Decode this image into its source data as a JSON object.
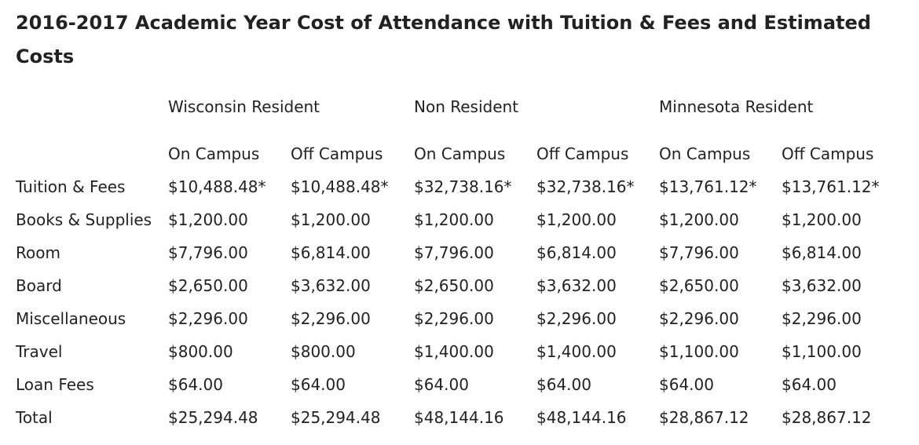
{
  "title": "2016-2017 Academic Year Cost of Attendance with Tuition & Fees and Estimated Costs",
  "groups": [
    "Wisconsin Resident",
    "Non Resident",
    "Minnesota Resident"
  ],
  "subheaders": [
    "On Campus",
    "Off Campus",
    "On Campus",
    "Off Campus",
    "On Campus",
    "Off Campus"
  ],
  "rows": [
    {
      "label": "Tuition & Fees",
      "values": [
        "$10,488.48*",
        "$10,488.48*",
        "$32,738.16*",
        "$32,738.16*",
        "$13,761.12*",
        "$13,761.12*"
      ]
    },
    {
      "label": "Books & Supplies",
      "values": [
        "$1,200.00",
        "$1,200.00",
        "$1,200.00",
        "$1,200.00",
        "$1,200.00",
        "$1,200.00"
      ]
    },
    {
      "label": "Room",
      "values": [
        "$7,796.00",
        "$6,814.00",
        "$7,796.00",
        "$6,814.00",
        "$7,796.00",
        "$6,814.00"
      ]
    },
    {
      "label": "Board",
      "values": [
        "$2,650.00",
        "$3,632.00",
        "$2,650.00",
        "$3,632.00",
        "$2,650.00",
        "$3,632.00"
      ]
    },
    {
      "label": "Miscellaneous",
      "values": [
        "$2,296.00",
        "$2,296.00",
        "$2,296.00",
        "$2,296.00",
        "$2,296.00",
        "$2,296.00"
      ]
    },
    {
      "label": "Travel",
      "values": [
        "$800.00",
        "$800.00",
        "$1,400.00",
        "$1,400.00",
        "$1,100.00",
        "$1,100.00"
      ]
    },
    {
      "label": "Loan Fees",
      "values": [
        "$64.00",
        "$64.00",
        "$64.00",
        "$64.00",
        "$64.00",
        "$64.00"
      ]
    },
    {
      "label": "Total",
      "values": [
        "$25,294.48",
        "$25,294.48",
        "$48,144.16",
        "$48,144.16",
        "$28,867.12",
        "$28,867.12"
      ]
    }
  ]
}
